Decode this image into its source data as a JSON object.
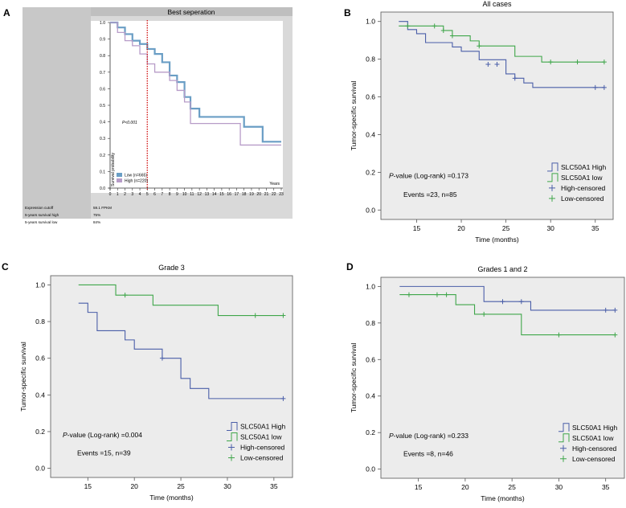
{
  "chart_data": [
    {
      "panel": "A",
      "type": "line",
      "title": "Best seperation",
      "xlabel": "Years",
      "ylabel": "Survival probability",
      "xlim": [
        0,
        23
      ],
      "ylim": [
        0,
        1.0
      ],
      "xticks": [
        0,
        1,
        2,
        3,
        4,
        5,
        6,
        7,
        8,
        9,
        10,
        11,
        12,
        13,
        14,
        15,
        16,
        17,
        18,
        19,
        20,
        21,
        22,
        23
      ],
      "yticks": [
        0.0,
        0.1,
        0.2,
        0.3,
        0.4,
        0.5,
        0.6,
        0.7,
        0.8,
        0.9,
        1.0
      ],
      "cutoff_line_x": 5,
      "annotation": "P<0.001",
      "grid": false,
      "legend_position": "bottom-left",
      "series": [
        {
          "name": "Low (n=665)",
          "color": "#6a9ec5",
          "x": [
            0,
            1,
            2,
            3,
            4,
            5,
            6,
            7,
            8,
            9,
            10,
            10.8,
            12,
            13,
            17.5,
            18,
            20.5,
            23
          ],
          "y": [
            1.0,
            0.97,
            0.93,
            0.89,
            0.87,
            0.84,
            0.81,
            0.76,
            0.68,
            0.64,
            0.55,
            0.48,
            0.43,
            0.43,
            0.43,
            0.37,
            0.28,
            0.28
          ]
        },
        {
          "name": "High (n=220)",
          "color": "#b79cc8",
          "x": [
            0,
            1,
            2,
            3,
            4,
            5,
            6,
            7,
            8,
            9,
            10,
            10.8,
            12,
            14,
            17.5,
            20,
            23
          ],
          "y": [
            1.0,
            0.94,
            0.89,
            0.86,
            0.81,
            0.75,
            0.7,
            0.7,
            0.65,
            0.59,
            0.52,
            0.39,
            0.39,
            0.39,
            0.26,
            0.26,
            0.26
          ]
        }
      ],
      "info_rows": [
        {
          "label": "Expression cutoff",
          "value": "59.1 FPKM"
        },
        {
          "label": "5-years survival high",
          "value": "75%"
        },
        {
          "label": "5-years survival low",
          "value": "84%"
        }
      ]
    },
    {
      "panel": "B",
      "type": "line",
      "title": "All cases",
      "xlabel": "Time (months)",
      "ylabel": "Tumor-specific survival",
      "xlim": [
        11,
        37
      ],
      "ylim": [
        -0.05,
        1.05
      ],
      "xticks": [
        15,
        20,
        25,
        30,
        35
      ],
      "yticks": [
        0.0,
        0.2,
        0.4,
        0.6,
        0.8,
        1.0
      ],
      "pvalue_text": "-value (Log-rank) =0.173",
      "events_text": "Events =23, n=85",
      "legend_position": "bottom-right",
      "series": [
        {
          "name": "SLC50A1 High",
          "color": "#4a5ea8",
          "steps": [
            [
              13,
              1.0
            ],
            [
              14,
              0.957
            ],
            [
              15,
              0.935
            ],
            [
              16,
              0.888
            ],
            [
              19,
              0.865
            ],
            [
              20,
              0.842
            ],
            [
              22,
              0.797
            ],
            [
              25,
              0.722
            ],
            [
              26,
              0.699
            ],
            [
              27,
              0.674
            ],
            [
              28,
              0.65
            ],
            [
              36,
              0.65
            ]
          ],
          "censored": [
            [
              23,
              0.773
            ],
            [
              24,
              0.773
            ],
            [
              26,
              0.699
            ],
            [
              35,
              0.65
            ],
            [
              36,
              0.65
            ]
          ]
        },
        {
          "name": "SLC50A1 low",
          "color": "#3fa64a",
          "steps": [
            [
              13,
              0.976
            ],
            [
              18,
              0.952
            ],
            [
              19,
              0.924
            ],
            [
              21,
              0.897
            ],
            [
              22,
              0.87
            ],
            [
              26,
              0.815
            ],
            [
              29,
              0.785
            ],
            [
              36,
              0.785
            ]
          ],
          "censored": [
            [
              14,
              0.976
            ],
            [
              17,
              0.976
            ],
            [
              18,
              0.952
            ],
            [
              19,
              0.924
            ],
            [
              22,
              0.87
            ],
            [
              30,
              0.785
            ],
            [
              33,
              0.785
            ],
            [
              36,
              0.785
            ]
          ]
        }
      ]
    },
    {
      "panel": "C",
      "type": "line",
      "title": "Grade 3",
      "xlabel": "Time (months)",
      "ylabel": "Tumor-specific survival",
      "xlim": [
        11,
        37
      ],
      "ylim": [
        -0.05,
        1.05
      ],
      "xticks": [
        15,
        20,
        25,
        30,
        35
      ],
      "yticks": [
        0.0,
        0.2,
        0.4,
        0.6,
        0.8,
        1.0
      ],
      "pvalue_text": "-value (Log-rank) =0.004",
      "events_text": "Events =15, n=39",
      "legend_position": "bottom-right",
      "series": [
        {
          "name": "SLC50A1 High",
          "color": "#4a5ea8",
          "steps": [
            [
              14,
              0.9
            ],
            [
              15,
              0.85
            ],
            [
              16,
              0.75
            ],
            [
              19,
              0.7
            ],
            [
              20,
              0.65
            ],
            [
              23,
              0.6
            ],
            [
              25,
              0.49
            ],
            [
              26,
              0.435
            ],
            [
              28,
              0.38
            ],
            [
              36,
              0.38
            ]
          ],
          "censored": [
            [
              23,
              0.6
            ],
            [
              36,
              0.38
            ]
          ]
        },
        {
          "name": "SLC50A1 low",
          "color": "#3fa64a",
          "steps": [
            [
              14,
              1.0
            ],
            [
              18,
              0.944
            ],
            [
              22,
              0.889
            ],
            [
              29,
              0.833
            ],
            [
              36,
              0.833
            ]
          ],
          "censored": [
            [
              19,
              0.944
            ],
            [
              33,
              0.833
            ],
            [
              36,
              0.833
            ]
          ]
        }
      ]
    },
    {
      "panel": "D",
      "type": "line",
      "title": "Grades 1 and 2",
      "xlabel": "Time (months)",
      "ylabel": "Tumor-specific survival",
      "xlim": [
        11,
        37
      ],
      "ylim": [
        -0.05,
        1.05
      ],
      "xticks": [
        15,
        20,
        25,
        30,
        35
      ],
      "yticks": [
        0.0,
        0.2,
        0.4,
        0.6,
        0.8,
        1.0
      ],
      "pvalue_text": "-value (Log-rank) =0.233",
      "events_text": "Events =8, n=46",
      "legend_position": "bottom-right",
      "series": [
        {
          "name": "SLC50A1 High",
          "color": "#4a5ea8",
          "steps": [
            [
              13,
              1.0
            ],
            [
              22,
              0.917
            ],
            [
              27,
              0.87
            ],
            [
              36,
              0.87
            ]
          ],
          "censored": [
            [
              24,
              0.917
            ],
            [
              26,
              0.917
            ],
            [
              35,
              0.87
            ],
            [
              36,
              0.87
            ]
          ]
        },
        {
          "name": "SLC50A1 low",
          "color": "#3fa64a",
          "steps": [
            [
              13,
              0.955
            ],
            [
              19,
              0.9
            ],
            [
              21,
              0.848
            ],
            [
              26,
              0.735
            ],
            [
              36,
              0.735
            ]
          ],
          "censored": [
            [
              14,
              0.955
            ],
            [
              17,
              0.955
            ],
            [
              18,
              0.955
            ],
            [
              22,
              0.848
            ],
            [
              30,
              0.735
            ],
            [
              36,
              0.735
            ]
          ]
        }
      ]
    }
  ],
  "panel_labels": [
    "A",
    "B",
    "C",
    "D"
  ],
  "legend_entries": [
    "SLC50A1 High",
    "SLC50A1 low",
    "High-censored",
    "Low-censored"
  ],
  "pvalue_prefix": "P"
}
